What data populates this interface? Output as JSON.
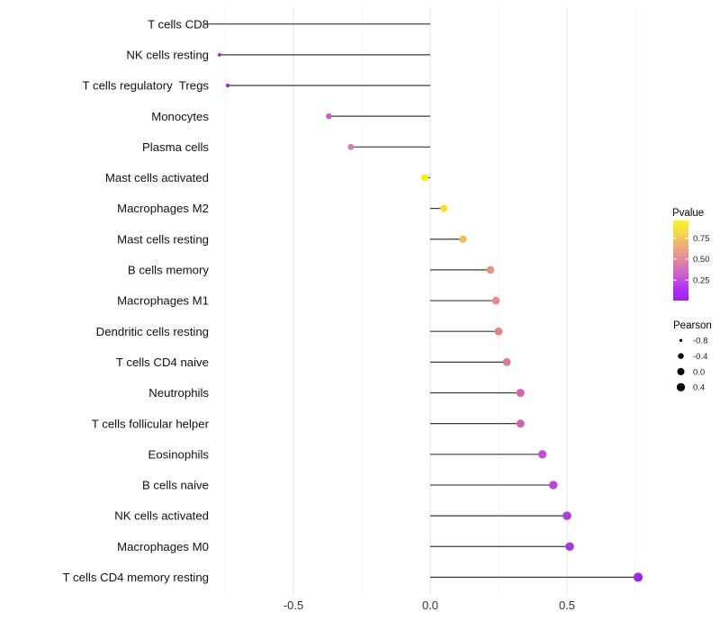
{
  "chart_data": {
    "type": "scatter",
    "variant": "lollipop",
    "title": "",
    "xlabel": "",
    "ylabel": "",
    "x_ticks": [
      {
        "label": "-0.5",
        "value": -0.5
      },
      {
        "label": "0.0",
        "value": 0.0
      },
      {
        "label": "0.5",
        "value": 0.5
      }
    ],
    "xlim": [
      -0.9,
      0.84
    ],
    "grid": {
      "major": [
        -0.5,
        0.0,
        0.5
      ],
      "minor": [
        -0.75,
        -0.25,
        0.25,
        0.75
      ]
    },
    "legend_position": "right",
    "stem_color": "#3A3A3A",
    "rows": [
      {
        "category": "T cells CD8",
        "pearson": -0.82,
        "color": "#9A22CC"
      },
      {
        "category": "NK cells resting",
        "pearson": -0.77,
        "color": "#9526D2"
      },
      {
        "category": "T cells regulatory  Tregs",
        "pearson": -0.74,
        "color": "#9426D4"
      },
      {
        "category": "Monocytes",
        "pearson": -0.37,
        "color": "#C260C6"
      },
      {
        "category": "Plasma cells",
        "pearson": -0.29,
        "color": "#D97FA6"
      },
      {
        "category": "Mast cells activated",
        "pearson": -0.02,
        "color": "#F6EE1D"
      },
      {
        "category": "Macrophages M2",
        "pearson": 0.05,
        "color": "#F4E32C"
      },
      {
        "category": "Mast cells resting",
        "pearson": 0.12,
        "color": "#EEC150"
      },
      {
        "category": "B cells memory",
        "pearson": 0.22,
        "color": "#E39483"
      },
      {
        "category": "Macrophages M1",
        "pearson": 0.24,
        "color": "#E18C8A"
      },
      {
        "category": "Dendritic cells resting",
        "pearson": 0.25,
        "color": "#E08582"
      },
      {
        "category": "T cells CD4 naive",
        "pearson": 0.28,
        "color": "#DC7D92"
      },
      {
        "category": "Neutrophils",
        "pearson": 0.33,
        "color": "#D264B2"
      },
      {
        "category": "T cells follicular helper",
        "pearson": 0.33,
        "color": "#CF63BC"
      },
      {
        "category": "Eosinophils",
        "pearson": 0.41,
        "color": "#C14FD6"
      },
      {
        "category": "B cells naive",
        "pearson": 0.45,
        "color": "#B845DB"
      },
      {
        "category": "NK cells activated",
        "pearson": 0.5,
        "color": "#AC3BD9"
      },
      {
        "category": "Macrophages M0",
        "pearson": 0.51,
        "color": "#A938DA"
      },
      {
        "category": "T cells CD4 memory resting",
        "pearson": 0.76,
        "color": "#A229E0"
      }
    ]
  },
  "legend_pvalue": {
    "title": "Pvalue",
    "ticks": [
      {
        "label": "0.75",
        "pos": 0.22
      },
      {
        "label": "0.50",
        "pos": 0.48
      },
      {
        "label": "0.25",
        "pos": 0.745
      }
    ],
    "gradient_top_to_bottom": [
      "#FBF424",
      "#F6DA4A",
      "#EFB470",
      "#E69590",
      "#D878B4",
      "#C455D8",
      "#AC31EE",
      "#A021F2"
    ]
  },
  "legend_pearson": {
    "title": "Pearson",
    "items": [
      {
        "label": "-0.8",
        "value": -0.8
      },
      {
        "label": "-0.4",
        "value": -0.4
      },
      {
        "label": "0.0",
        "value": 0.0
      },
      {
        "label": "0.4",
        "value": 0.4
      }
    ]
  }
}
